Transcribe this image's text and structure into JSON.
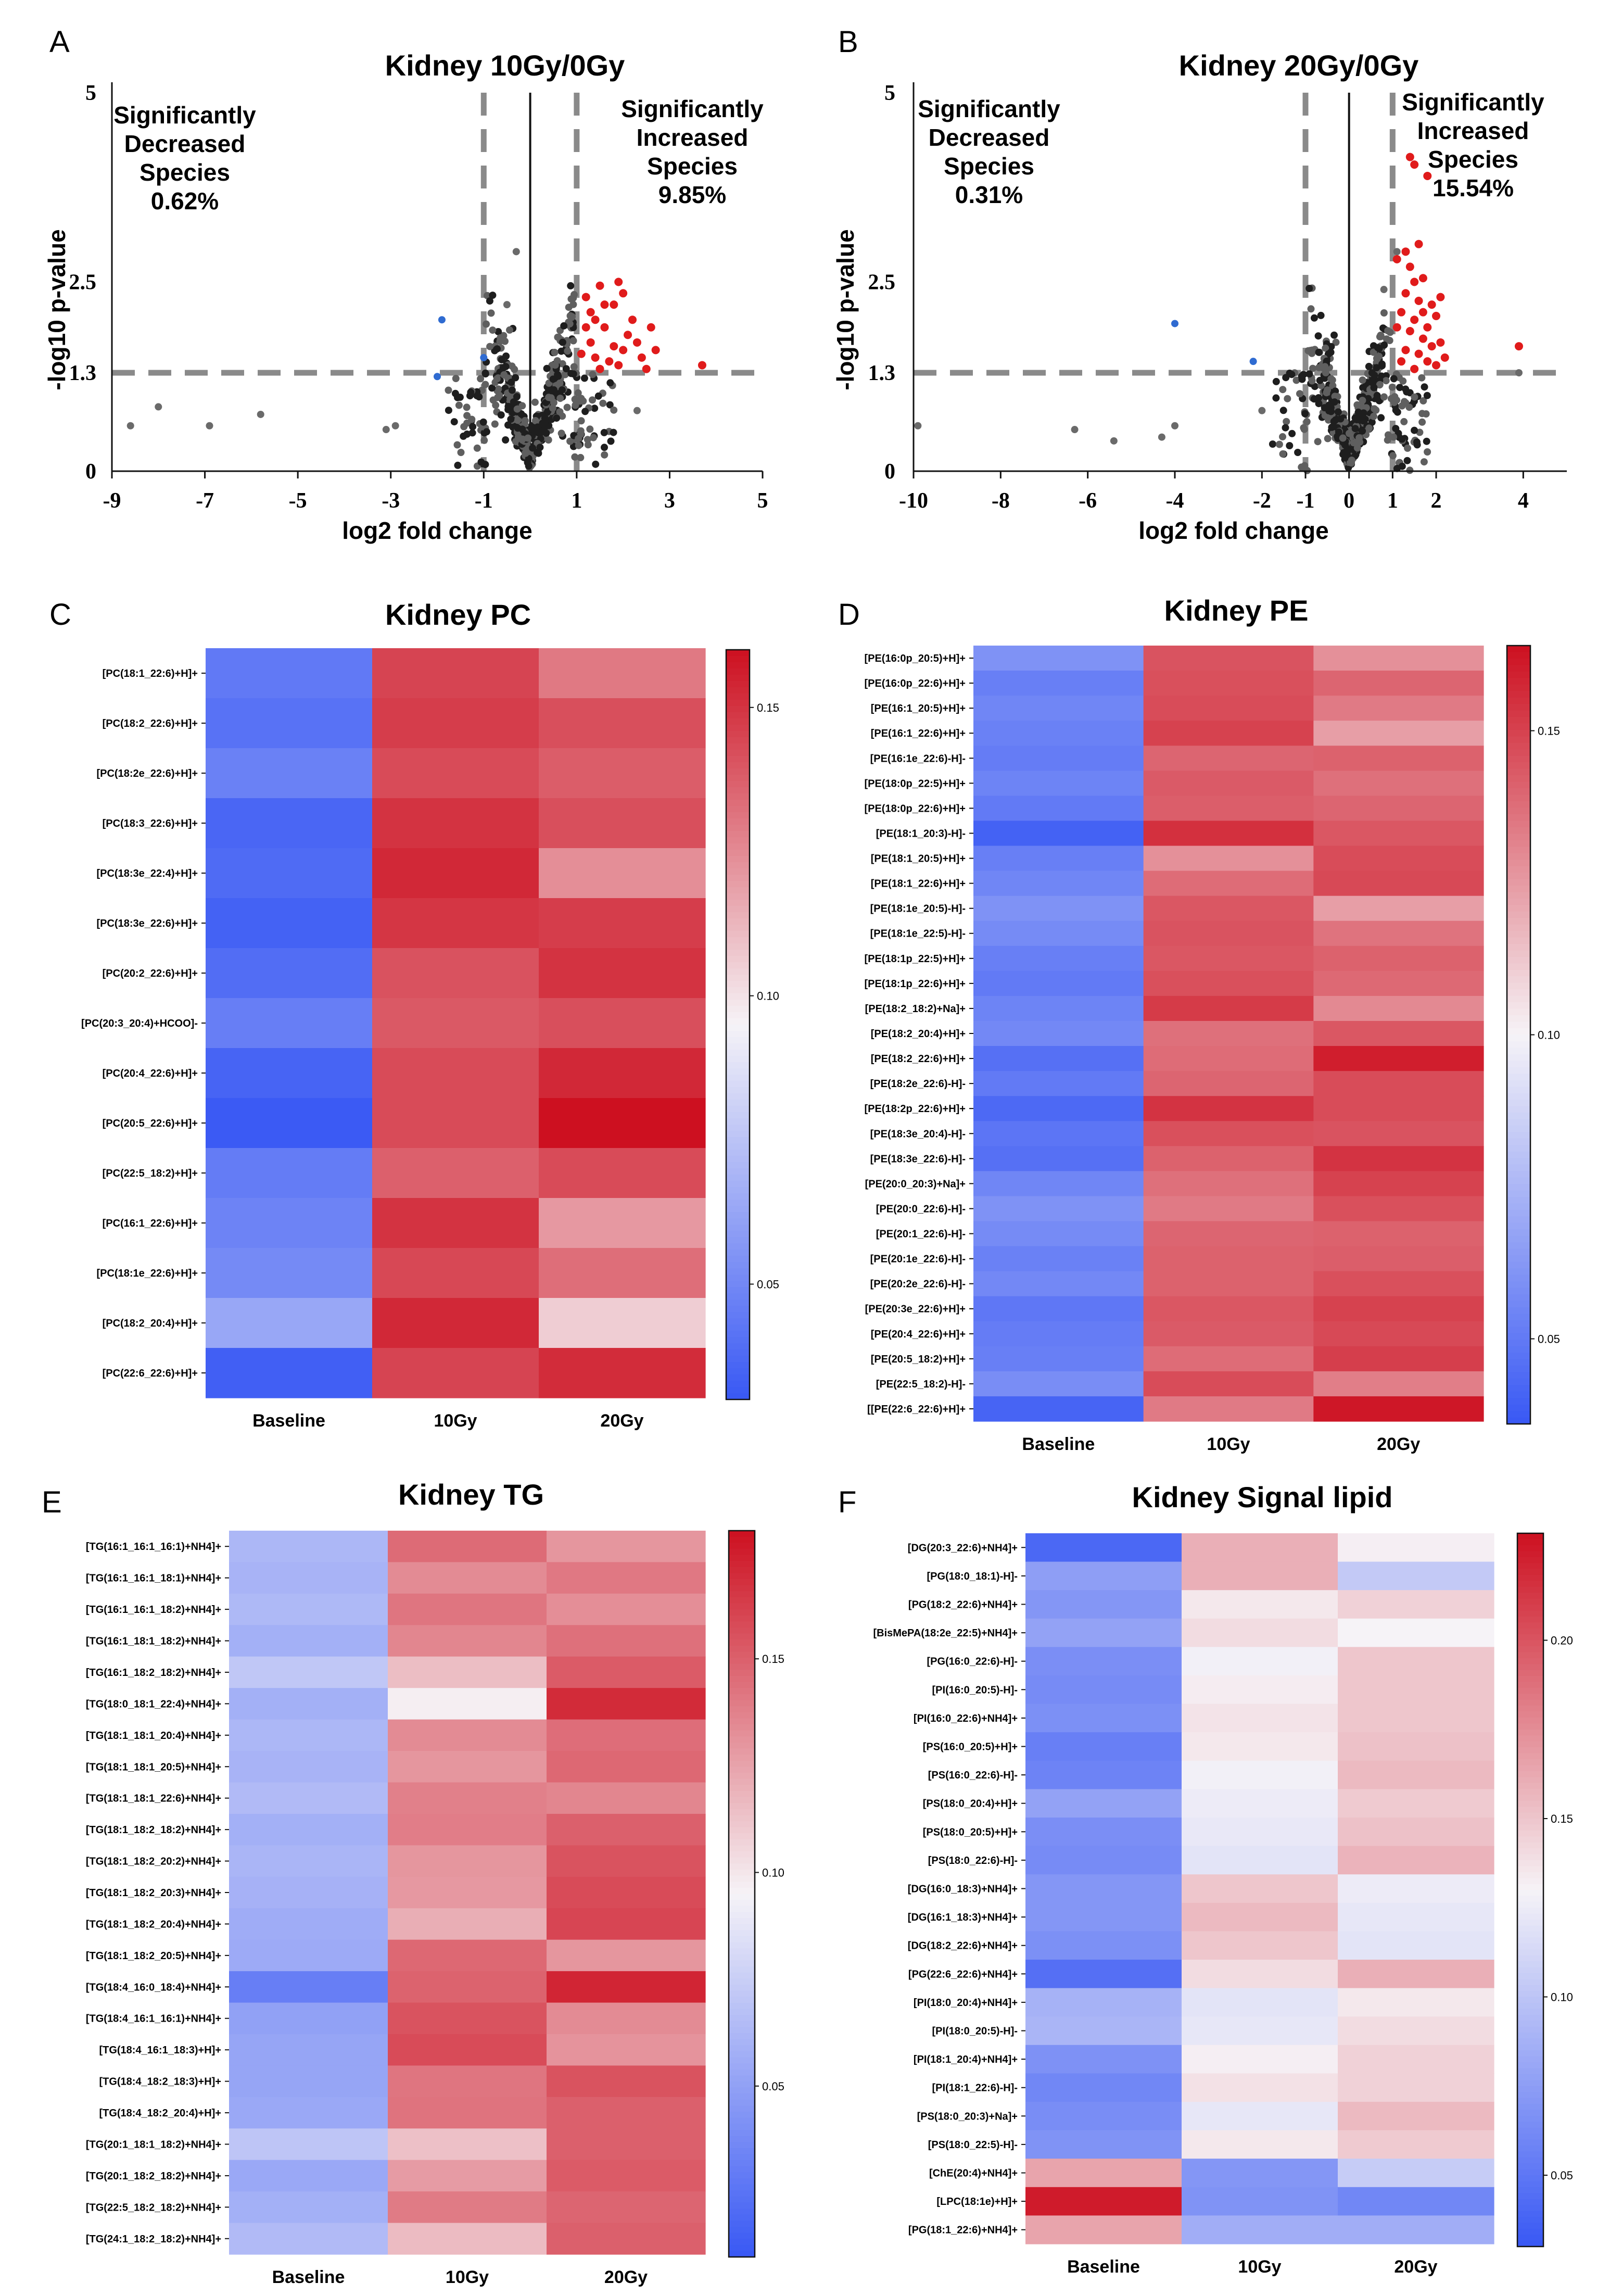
{
  "chart_data": [
    {
      "type": "scatter",
      "panel_label": "A",
      "title": "Kidney 10Gy/0Gy",
      "xlabel": "log2 fold change",
      "ylabel": "-log10 p-value",
      "xlim": [
        -9,
        5
      ],
      "ylim": [
        0,
        5
      ],
      "xticks": [
        "-9",
        "-7",
        "-5",
        "-3",
        "-1",
        "1",
        "3",
        "5"
      ],
      "yticks": [
        "0",
        "1.3",
        "2.5",
        "5"
      ],
      "threshold_x": [
        -1,
        1
      ],
      "threshold_y": 1.3,
      "annotation_left": [
        "Significantly",
        "Decreased",
        "Species",
        "0.62%"
      ],
      "annotation_right": [
        "Significantly",
        "Increased",
        "Species",
        "9.85%"
      ],
      "seed": 11,
      "n_gray": 560,
      "gray_outliers": [
        [
          -8.6,
          0.6
        ],
        [
          -8.0,
          0.85
        ],
        [
          -6.9,
          0.6
        ],
        [
          -5.8,
          0.75
        ],
        [
          -3.1,
          0.55
        ],
        [
          -2.9,
          0.6
        ],
        [
          -0.3,
          2.9
        ],
        [
          -0.5,
          2.2
        ],
        [
          2.3,
          0.8
        ]
      ],
      "significant_down": [
        [
          -1.9,
          2.0
        ],
        [
          -1.0,
          1.5
        ],
        [
          -2.0,
          1.25
        ]
      ],
      "significant_up": [
        [
          1.2,
          2.3
        ],
        [
          1.3,
          2.1
        ],
        [
          1.5,
          2.45
        ],
        [
          1.6,
          1.9
        ],
        [
          1.8,
          2.2
        ],
        [
          2.0,
          1.6
        ],
        [
          2.1,
          1.8
        ],
        [
          1.4,
          1.5
        ],
        [
          1.7,
          1.45
        ],
        [
          1.9,
          1.4
        ],
        [
          2.2,
          2.0
        ],
        [
          2.4,
          1.5
        ],
        [
          2.6,
          1.9
        ],
        [
          2.5,
          1.35
        ],
        [
          1.3,
          1.7
        ],
        [
          1.5,
          1.35
        ],
        [
          1.8,
          1.65
        ],
        [
          2.0,
          2.35
        ],
        [
          1.2,
          1.9
        ],
        [
          2.3,
          1.7
        ],
        [
          1.6,
          2.2
        ],
        [
          1.4,
          2.0
        ],
        [
          2.7,
          1.6
        ],
        [
          3.7,
          1.4
        ],
        [
          1.1,
          1.55
        ],
        [
          1.9,
          2.5
        ]
      ]
    },
    {
      "type": "scatter",
      "panel_label": "B",
      "title": "Kidney 20Gy/0Gy",
      "xlabel": "log2 fold change",
      "ylabel": "-log10 p-value",
      "xlim": [
        -10,
        5
      ],
      "ylim": [
        0,
        5
      ],
      "xticks": [
        "-10",
        "-8",
        "-6",
        "-4",
        "-2",
        "-1",
        "0",
        "1",
        "2",
        "4"
      ],
      "xtick_values": [
        -10,
        -8,
        -6,
        -4,
        -2,
        -1,
        0,
        1,
        2,
        4
      ],
      "yticks": [
        "0",
        "1.3",
        "2.5",
        "5"
      ],
      "threshold_x": [
        -1,
        1
      ],
      "threshold_y": 1.3,
      "annotation_left": [
        "Significantly",
        "Decreased",
        "Species",
        "0.31%"
      ],
      "annotation_right": [
        "Significantly",
        "Increased",
        "Species",
        "15.54%"
      ],
      "seed": 23,
      "n_gray": 540,
      "gray_outliers": [
        [
          -9.9,
          0.6
        ],
        [
          -6.3,
          0.55
        ],
        [
          -5.4,
          0.4
        ],
        [
          -4.3,
          0.45
        ],
        [
          -4.0,
          0.6
        ],
        [
          -2.0,
          0.8
        ],
        [
          1.1,
          2.9
        ],
        [
          0.8,
          2.4
        ],
        [
          3.9,
          1.3
        ]
      ],
      "significant_down": [
        [
          -4.0,
          1.95
        ],
        [
          -2.2,
          1.45
        ]
      ],
      "significant_up": [
        [
          1.4,
          4.15
        ],
        [
          1.5,
          4.05
        ],
        [
          1.8,
          3.9
        ],
        [
          1.1,
          2.8
        ],
        [
          1.4,
          2.7
        ],
        [
          1.5,
          2.5
        ],
        [
          1.7,
          2.55
        ],
        [
          1.3,
          2.35
        ],
        [
          1.6,
          2.25
        ],
        [
          1.9,
          2.2
        ],
        [
          2.0,
          2.05
        ],
        [
          1.5,
          2.0
        ],
        [
          1.8,
          1.9
        ],
        [
          1.2,
          2.1
        ],
        [
          1.4,
          1.85
        ],
        [
          1.7,
          1.75
        ],
        [
          1.9,
          1.65
        ],
        [
          2.1,
          1.7
        ],
        [
          1.3,
          1.6
        ],
        [
          1.6,
          1.55
        ],
        [
          1.8,
          1.45
        ],
        [
          2.0,
          1.4
        ],
        [
          1.2,
          1.45
        ],
        [
          1.5,
          1.35
        ],
        [
          2.1,
          2.3
        ],
        [
          1.1,
          1.9
        ],
        [
          2.2,
          1.5
        ],
        [
          1.7,
          2.1
        ],
        [
          3.9,
          1.65
        ],
        [
          1.6,
          3.0
        ],
        [
          1.3,
          2.9
        ]
      ]
    },
    {
      "type": "heatmap",
      "panel_label": "C",
      "title": "Kidney PC",
      "columns": [
        "Baseline",
        "10Gy",
        "20Gy"
      ],
      "colorbar_ticks": [
        0.05,
        0.1,
        0.15
      ],
      "colorbar_labels": [
        "0.05",
        "0.10",
        "0.15"
      ],
      "vmin": 0.03,
      "vmax": 0.16,
      "rows": [
        "[PC(18:1_22:6)+H]+",
        "[PC(18:2_22:6)+H]+",
        "[PC(18:2e_22:6)+H]+",
        "[PC(18:3_22:6)+H]+",
        "[PC(18:3e_22:4)+H]+",
        "[PC(18:3e_22:6)+H]+",
        "[PC(20:2_22:6)+H]+",
        "[PC(20:3_20:4)+HCOO]-",
        "[PC(20:4_22:6)+H]+",
        "[PC(20:5_22:6)+H]+",
        "[PC(22:5_18:2)+H]+",
        "[PC(16:1_22:6)+H]+",
        "[PC(18:1e_22:6)+H]+",
        "[PC(18:2_20:4)+H]+",
        "[PC(22:6_22:6)+H]+"
      ],
      "values": [
        [
          0.044,
          0.145,
          0.13
        ],
        [
          0.041,
          0.147,
          0.142
        ],
        [
          0.047,
          0.143,
          0.138
        ],
        [
          0.036,
          0.15,
          0.142
        ],
        [
          0.038,
          0.153,
          0.124
        ],
        [
          0.034,
          0.149,
          0.147
        ],
        [
          0.039,
          0.141,
          0.15
        ],
        [
          0.046,
          0.139,
          0.142
        ],
        [
          0.035,
          0.143,
          0.153
        ],
        [
          0.031,
          0.143,
          0.16
        ],
        [
          0.045,
          0.137,
          0.143
        ],
        [
          0.048,
          0.15,
          0.121
        ],
        [
          0.051,
          0.144,
          0.133
        ],
        [
          0.063,
          0.153,
          0.106
        ],
        [
          0.033,
          0.145,
          0.152
        ]
      ]
    },
    {
      "type": "heatmap",
      "panel_label": "D",
      "title": "Kidney PE",
      "columns": [
        "Baseline",
        "10Gy",
        "20Gy"
      ],
      "colorbar_ticks": [
        0.05,
        0.1,
        0.15
      ],
      "colorbar_labels": [
        "0.05",
        "0.10",
        "0.15"
      ],
      "vmin": 0.036,
      "vmax": 0.164,
      "rows": [
        "[PE(16:0p_20:5)+H]+",
        "[PE(16:0p_22:6)+H]+",
        "[PE(16:1_20:5)+H]+",
        "[PE(16:1_22:6)+H]+",
        "[PE(16:1e_22:6)-H]-",
        "[PE(18:0p_22:5)+H]+",
        "[PE(18:0p_22:6)+H]+",
        "[PE(18:1_20:3)-H]-",
        "[PE(18:1_20:5)+H]+",
        "[PE(18:1_22:6)+H]+",
        "[PE(18:1e_20:5)-H]-",
        "[PE(18:1e_22:5)-H]-",
        "[PE(18:1p_22:5)+H]+",
        "[PE(18:1p_22:6)+H]+",
        "[PE(18:2_18:2)+Na]+",
        "[PE(18:2_20:4)+H]+",
        "[PE(18:2_22:6)+H]+",
        "[PE(18:2e_22:6)-H]-",
        "[PE(18:2p_22:6)+H]+",
        "[PE(18:3e_20:4)-H]-",
        "[PE(18:3e_22:6)-H]-",
        "[PE(20:0_20:3)+Na]+",
        "[PE(20:0_22:6)-H]-",
        "[PE(20:1_22:6)-H]-",
        "[PE(20:1e_22:6)-H]-",
        "[PE(20:2e_22:6)-H]-",
        "[PE(20:3e_22:6)+H]+",
        "[PE(20:4_22:6)+H]+",
        "[PE(20:5_18:2)+H]+",
        "[PE(22:5_18:2)-H]-",
        "[[PE(22:6_22:6)+H]+"
      ],
      "values": [
        [
          0.06,
          0.145,
          0.128
        ],
        [
          0.052,
          0.146,
          0.14
        ],
        [
          0.055,
          0.147,
          0.134
        ],
        [
          0.053,
          0.15,
          0.124
        ],
        [
          0.051,
          0.14,
          0.141
        ],
        [
          0.054,
          0.143,
          0.137
        ],
        [
          0.05,
          0.142,
          0.14
        ],
        [
          0.04,
          0.155,
          0.144
        ],
        [
          0.052,
          0.128,
          0.147
        ],
        [
          0.055,
          0.138,
          0.148
        ],
        [
          0.06,
          0.144,
          0.124
        ],
        [
          0.057,
          0.145,
          0.136
        ],
        [
          0.052,
          0.144,
          0.141
        ],
        [
          0.05,
          0.146,
          0.139
        ],
        [
          0.054,
          0.152,
          0.13
        ],
        [
          0.056,
          0.137,
          0.144
        ],
        [
          0.046,
          0.138,
          0.16
        ],
        [
          0.05,
          0.14,
          0.147
        ],
        [
          0.043,
          0.154,
          0.147
        ],
        [
          0.048,
          0.146,
          0.145
        ],
        [
          0.046,
          0.141,
          0.154
        ],
        [
          0.055,
          0.137,
          0.15
        ],
        [
          0.06,
          0.134,
          0.146
        ],
        [
          0.057,
          0.14,
          0.141
        ],
        [
          0.053,
          0.141,
          0.142
        ],
        [
          0.056,
          0.141,
          0.146
        ],
        [
          0.049,
          0.144,
          0.15
        ],
        [
          0.051,
          0.143,
          0.148
        ],
        [
          0.052,
          0.138,
          0.151
        ],
        [
          0.058,
          0.147,
          0.133
        ],
        [
          0.041,
          0.134,
          0.162
        ]
      ]
    },
    {
      "type": "heatmap",
      "panel_label": "E",
      "title": "Kidney TG",
      "columns": [
        "Baseline",
        "10Gy",
        "20Gy"
      ],
      "colorbar_ticks": [
        0.05,
        0.1,
        0.15
      ],
      "colorbar_labels": [
        "0.05",
        "0.10",
        "0.15"
      ],
      "vmin": 0.01,
      "vmax": 0.18,
      "rows": [
        "[TG(16:1_16:1_16:1)+NH4]+",
        "[TG(16:1_16:1_18:1)+NH4]+",
        "[TG(16:1_16:1_18:2)+NH4]+",
        "[TG(16:1_18:1_18:2)+NH4]+",
        "[TG(16:1_18:2_18:2)+NH4]+",
        "[TG(18:0_18:1_22:4)+NH4]+",
        "[TG(18:1_18:1_20:4)+NH4]+",
        "[TG(18:1_18:1_20:5)+NH4]+",
        "[TG(18:1_18:1_22:6)+NH4]+",
        "[TG(18:1_18:2_18:2)+NH4]+",
        "[TG(18:1_18:2_20:2)+NH4]+",
        "[TG(18:1_18:2_20:3)+NH4]+",
        "[TG(18:1_18:2_20:4)+NH4]+",
        "[TG(18:1_18:2_20:5)+NH4]+",
        "[TG(18:4_16:0_18:4)+NH4]+",
        "[TG(18:4_16:1_16:1)+NH4]+",
        "[TG(18:4_16:1_18:3)+H]+",
        "[TG(18:4_18:2_18:3)+H]+",
        "[TG(18:4_18:2_20:4)+H]+",
        "[TG(20:1_18:1_18:2)+NH4]+",
        "[TG(20:1_18:2_18:2)+NH4]+",
        "[TG(22:5_18:2_18:2)+NH4]+",
        "[TG(24:1_18:2_18:2)+NH4]+"
      ],
      "values": [
        [
          0.062,
          0.146,
          0.13
        ],
        [
          0.06,
          0.134,
          0.141
        ],
        [
          0.063,
          0.142,
          0.133
        ],
        [
          0.058,
          0.136,
          0.144
        ],
        [
          0.071,
          0.115,
          0.152
        ],
        [
          0.058,
          0.097,
          0.17
        ],
        [
          0.062,
          0.134,
          0.145
        ],
        [
          0.06,
          0.13,
          0.147
        ],
        [
          0.064,
          0.138,
          0.136
        ],
        [
          0.058,
          0.139,
          0.15
        ],
        [
          0.061,
          0.13,
          0.155
        ],
        [
          0.059,
          0.129,
          0.158
        ],
        [
          0.056,
          0.121,
          0.16
        ],
        [
          0.055,
          0.147,
          0.13
        ],
        [
          0.031,
          0.149,
          0.172
        ],
        [
          0.05,
          0.155,
          0.134
        ],
        [
          0.052,
          0.158,
          0.131
        ],
        [
          0.052,
          0.142,
          0.155
        ],
        [
          0.054,
          0.143,
          0.15
        ],
        [
          0.07,
          0.114,
          0.15
        ],
        [
          0.054,
          0.128,
          0.152
        ],
        [
          0.058,
          0.14,
          0.148
        ],
        [
          0.064,
          0.116,
          0.15
        ]
      ]
    },
    {
      "type": "heatmap",
      "panel_label": "F",
      "title": "Kidney Signal lipid",
      "columns": [
        "Baseline",
        "10Gy",
        "20Gy"
      ],
      "colorbar_ticks": [
        0.05,
        0.1,
        0.15,
        0.2
      ],
      "colorbar_labels": [
        "0.05",
        "0.10",
        "0.15",
        "0.20"
      ],
      "vmin": 0.03,
      "vmax": 0.23,
      "rows": [
        "[DG(20:3_22:6)+NH4]+",
        "[PG(18:0_18:1)-H]-",
        "[PG(18:2_22:6)+NH4]+",
        "[BisMePA(18:2e_22:5)+NH4]+",
        "[PG(16:0_22:6)-H]-",
        "[PI(16:0_20:5)-H]-",
        "[PI(16:0_22:6)+NH4]+",
        "[PS(16:0_20:5)+H]+",
        "[PS(16:0_22:6)-H]-",
        "[PS(18:0_20:4)+H]+",
        "[PS(18:0_20:5)+H]+",
        "[PS(18:0_22:6)-H]-",
        "[DG(16:0_18:3)+NH4]+",
        "[DG(16:1_18:3)+NH4]+",
        "[DG(18:2_22:6)+NH4]+",
        "[PG(22:6_22:6)+NH4]+",
        "[PI(18:0_20:4)+NH4]+",
        "[PI(18:0_20:5)-H]-",
        "[PI(18:1_20:4)+NH4]+",
        "[PI(18:1_22:6)-H]-",
        "[PS(18:0_20:3)+Na]+",
        "[PS(18:0_22:5)-H]-",
        "[ChE(20:4)+NH4]+",
        "[LPC(18:1e)+H]+",
        "[PG(18:1_22:6)+NH4]+"
      ],
      "values": [
        [
          0.04,
          0.16,
          0.132
        ],
        [
          0.075,
          0.16,
          0.103
        ],
        [
          0.07,
          0.135,
          0.145
        ],
        [
          0.078,
          0.14,
          0.13
        ],
        [
          0.065,
          0.128,
          0.15
        ],
        [
          0.063,
          0.133,
          0.15
        ],
        [
          0.066,
          0.137,
          0.15
        ],
        [
          0.055,
          0.135,
          0.152
        ],
        [
          0.058,
          0.128,
          0.155
        ],
        [
          0.078,
          0.125,
          0.148
        ],
        [
          0.065,
          0.123,
          0.152
        ],
        [
          0.063,
          0.12,
          0.158
        ],
        [
          0.07,
          0.15,
          0.125
        ],
        [
          0.07,
          0.155,
          0.122
        ],
        [
          0.066,
          0.15,
          0.12
        ],
        [
          0.045,
          0.14,
          0.16
        ],
        [
          0.088,
          0.12,
          0.135
        ],
        [
          0.09,
          0.122,
          0.14
        ],
        [
          0.067,
          0.132,
          0.145
        ],
        [
          0.06,
          0.138,
          0.145
        ],
        [
          0.064,
          0.122,
          0.155
        ],
        [
          0.068,
          0.135,
          0.148
        ],
        [
          0.165,
          0.07,
          0.105
        ],
        [
          0.225,
          0.068,
          0.06
        ],
        [
          0.165,
          0.085,
          0.085
        ]
      ]
    }
  ]
}
